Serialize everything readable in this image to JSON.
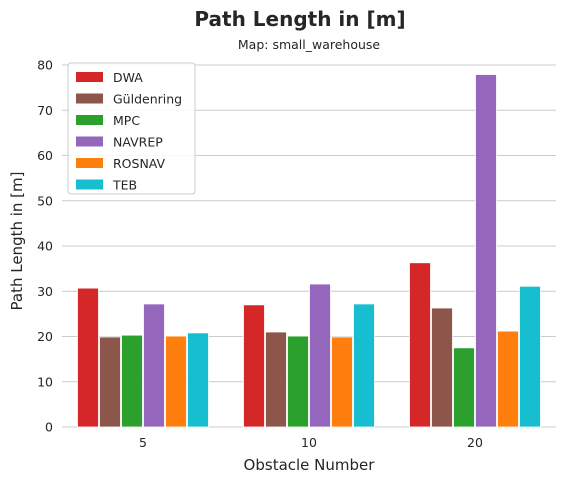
{
  "chart_data": {
    "type": "bar",
    "title": "Path Length in [m]",
    "subtitle": "Map: small_warehouse",
    "xlabel": "Obstacle Number",
    "ylabel": "Path Length in [m]",
    "categories": [
      "5",
      "10",
      "20"
    ],
    "ylim": [
      0,
      82
    ],
    "yticks": [
      0,
      10,
      20,
      30,
      40,
      50,
      60,
      70,
      80
    ],
    "grid": true,
    "legend_position": "top-left",
    "series": [
      {
        "name": "DWA",
        "color": "#d62728",
        "values": [
          30.7,
          27.0,
          36.3
        ]
      },
      {
        "name": "Güldenring",
        "color": "#8c564b",
        "values": [
          19.9,
          21.0,
          26.3
        ]
      },
      {
        "name": "MPC",
        "color": "#2ca02c",
        "values": [
          20.3,
          20.1,
          17.5
        ]
      },
      {
        "name": "NAVREP",
        "color": "#9467bd",
        "values": [
          27.2,
          31.6,
          77.9
        ]
      },
      {
        "name": "ROSNAV",
        "color": "#ff7f0e",
        "values": [
          20.1,
          19.9,
          21.2
        ]
      },
      {
        "name": "TEB",
        "color": "#17becf",
        "values": [
          20.8,
          27.2,
          31.1
        ]
      }
    ]
  }
}
